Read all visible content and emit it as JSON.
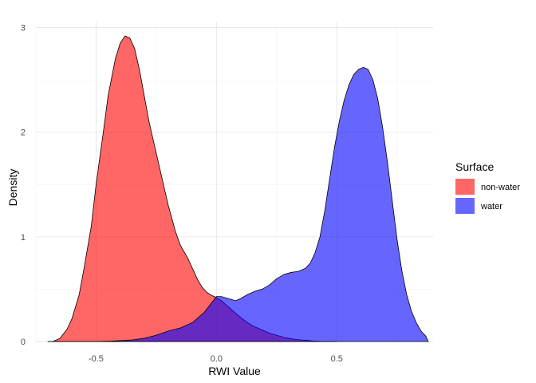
{
  "chart_data": {
    "type": "area",
    "subtype": "density",
    "title": "",
    "xlabel": "RWI Value",
    "ylabel": "Density",
    "xlim": [
      -0.75,
      0.9
    ],
    "ylim": [
      0,
      3.05
    ],
    "x_ticks": [
      -0.5,
      0.0,
      0.5
    ],
    "x_tick_labels": [
      "-0.5",
      "0.0",
      "0.5"
    ],
    "y_ticks": [
      0,
      1,
      2,
      3
    ],
    "y_tick_labels": [
      "0",
      "1",
      "2",
      "3"
    ],
    "grid": true,
    "legend": {
      "title": "Surface",
      "position": "right"
    },
    "series": [
      {
        "name": "non-water",
        "color": "#FF0000",
        "opacity": 0.6,
        "points": [
          [
            -0.7,
            0.0
          ],
          [
            -0.68,
            0.0
          ],
          [
            -0.65,
            0.03
          ],
          [
            -0.62,
            0.12
          ],
          [
            -0.6,
            0.22
          ],
          [
            -0.57,
            0.45
          ],
          [
            -0.55,
            0.7
          ],
          [
            -0.52,
            1.1
          ],
          [
            -0.5,
            1.5
          ],
          [
            -0.47,
            2.0
          ],
          [
            -0.45,
            2.35
          ],
          [
            -0.42,
            2.7
          ],
          [
            -0.4,
            2.85
          ],
          [
            -0.38,
            2.92
          ],
          [
            -0.36,
            2.9
          ],
          [
            -0.34,
            2.8
          ],
          [
            -0.32,
            2.6
          ],
          [
            -0.3,
            2.35
          ],
          [
            -0.28,
            2.1
          ],
          [
            -0.25,
            1.8
          ],
          [
            -0.22,
            1.5
          ],
          [
            -0.2,
            1.3
          ],
          [
            -0.17,
            1.05
          ],
          [
            -0.15,
            0.92
          ],
          [
            -0.12,
            0.8
          ],
          [
            -0.1,
            0.7
          ],
          [
            -0.08,
            0.6
          ],
          [
            -0.06,
            0.52
          ],
          [
            -0.04,
            0.47
          ],
          [
            -0.02,
            0.44
          ],
          [
            0.0,
            0.42
          ],
          [
            0.02,
            0.39
          ],
          [
            0.05,
            0.33
          ],
          [
            0.08,
            0.27
          ],
          [
            0.1,
            0.23
          ],
          [
            0.13,
            0.18
          ],
          [
            0.15,
            0.15
          ],
          [
            0.18,
            0.12
          ],
          [
            0.2,
            0.1
          ],
          [
            0.22,
            0.08
          ],
          [
            0.25,
            0.06
          ],
          [
            0.28,
            0.04
          ],
          [
            0.3,
            0.03
          ],
          [
            0.33,
            0.02
          ],
          [
            0.35,
            0.015
          ],
          [
            0.38,
            0.01
          ],
          [
            0.4,
            0.005
          ],
          [
            0.45,
            0.0
          ],
          [
            0.5,
            0.0
          ]
        ]
      },
      {
        "name": "water",
        "color": "#0000FF",
        "opacity": 0.6,
        "points": [
          [
            -0.7,
            0.0
          ],
          [
            -0.5,
            0.0
          ],
          [
            -0.45,
            0.003
          ],
          [
            -0.4,
            0.008
          ],
          [
            -0.35,
            0.015
          ],
          [
            -0.3,
            0.03
          ],
          [
            -0.25,
            0.06
          ],
          [
            -0.2,
            0.1
          ],
          [
            -0.15,
            0.13
          ],
          [
            -0.1,
            0.18
          ],
          [
            -0.05,
            0.28
          ],
          [
            -0.02,
            0.37
          ],
          [
            0.0,
            0.43
          ],
          [
            0.02,
            0.43
          ],
          [
            0.05,
            0.41
          ],
          [
            0.08,
            0.39
          ],
          [
            0.1,
            0.41
          ],
          [
            0.13,
            0.45
          ],
          [
            0.16,
            0.48
          ],
          [
            0.19,
            0.5
          ],
          [
            0.22,
            0.54
          ],
          [
            0.25,
            0.6
          ],
          [
            0.28,
            0.64
          ],
          [
            0.31,
            0.66
          ],
          [
            0.34,
            0.67
          ],
          [
            0.37,
            0.7
          ],
          [
            0.39,
            0.75
          ],
          [
            0.41,
            0.85
          ],
          [
            0.43,
            1.0
          ],
          [
            0.45,
            1.25
          ],
          [
            0.47,
            1.55
          ],
          [
            0.49,
            1.85
          ],
          [
            0.51,
            2.1
          ],
          [
            0.53,
            2.3
          ],
          [
            0.55,
            2.45
          ],
          [
            0.57,
            2.55
          ],
          [
            0.59,
            2.6
          ],
          [
            0.61,
            2.62
          ],
          [
            0.63,
            2.6
          ],
          [
            0.65,
            2.5
          ],
          [
            0.67,
            2.32
          ],
          [
            0.69,
            2.05
          ],
          [
            0.71,
            1.72
          ],
          [
            0.73,
            1.35
          ],
          [
            0.75,
            0.98
          ],
          [
            0.77,
            0.68
          ],
          [
            0.79,
            0.45
          ],
          [
            0.81,
            0.29
          ],
          [
            0.83,
            0.18
          ],
          [
            0.85,
            0.1
          ],
          [
            0.87,
            0.05
          ],
          [
            0.88,
            0.0
          ]
        ]
      }
    ]
  }
}
